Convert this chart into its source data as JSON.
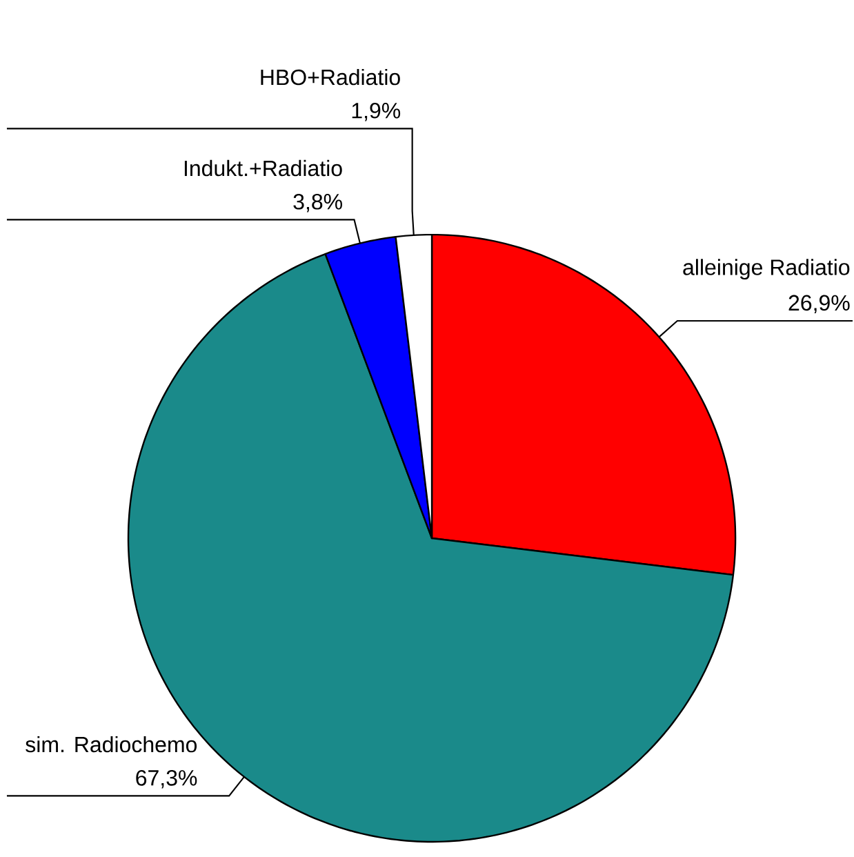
{
  "chart_data": {
    "type": "pie",
    "categories": [
      "alleinige Radiatio",
      "sim. Radiochemo",
      "Indukt.+Radiatio",
      "HBO+Radiatio"
    ],
    "values": [
      26.9,
      67.3,
      3.8,
      1.9
    ],
    "value_labels": [
      "26,9%",
      "67,3%",
      "3,8%",
      "1,9%"
    ],
    "colors": [
      "#ff0000",
      "#1a8a8a",
      "#0000ff",
      "#ffffff"
    ]
  }
}
